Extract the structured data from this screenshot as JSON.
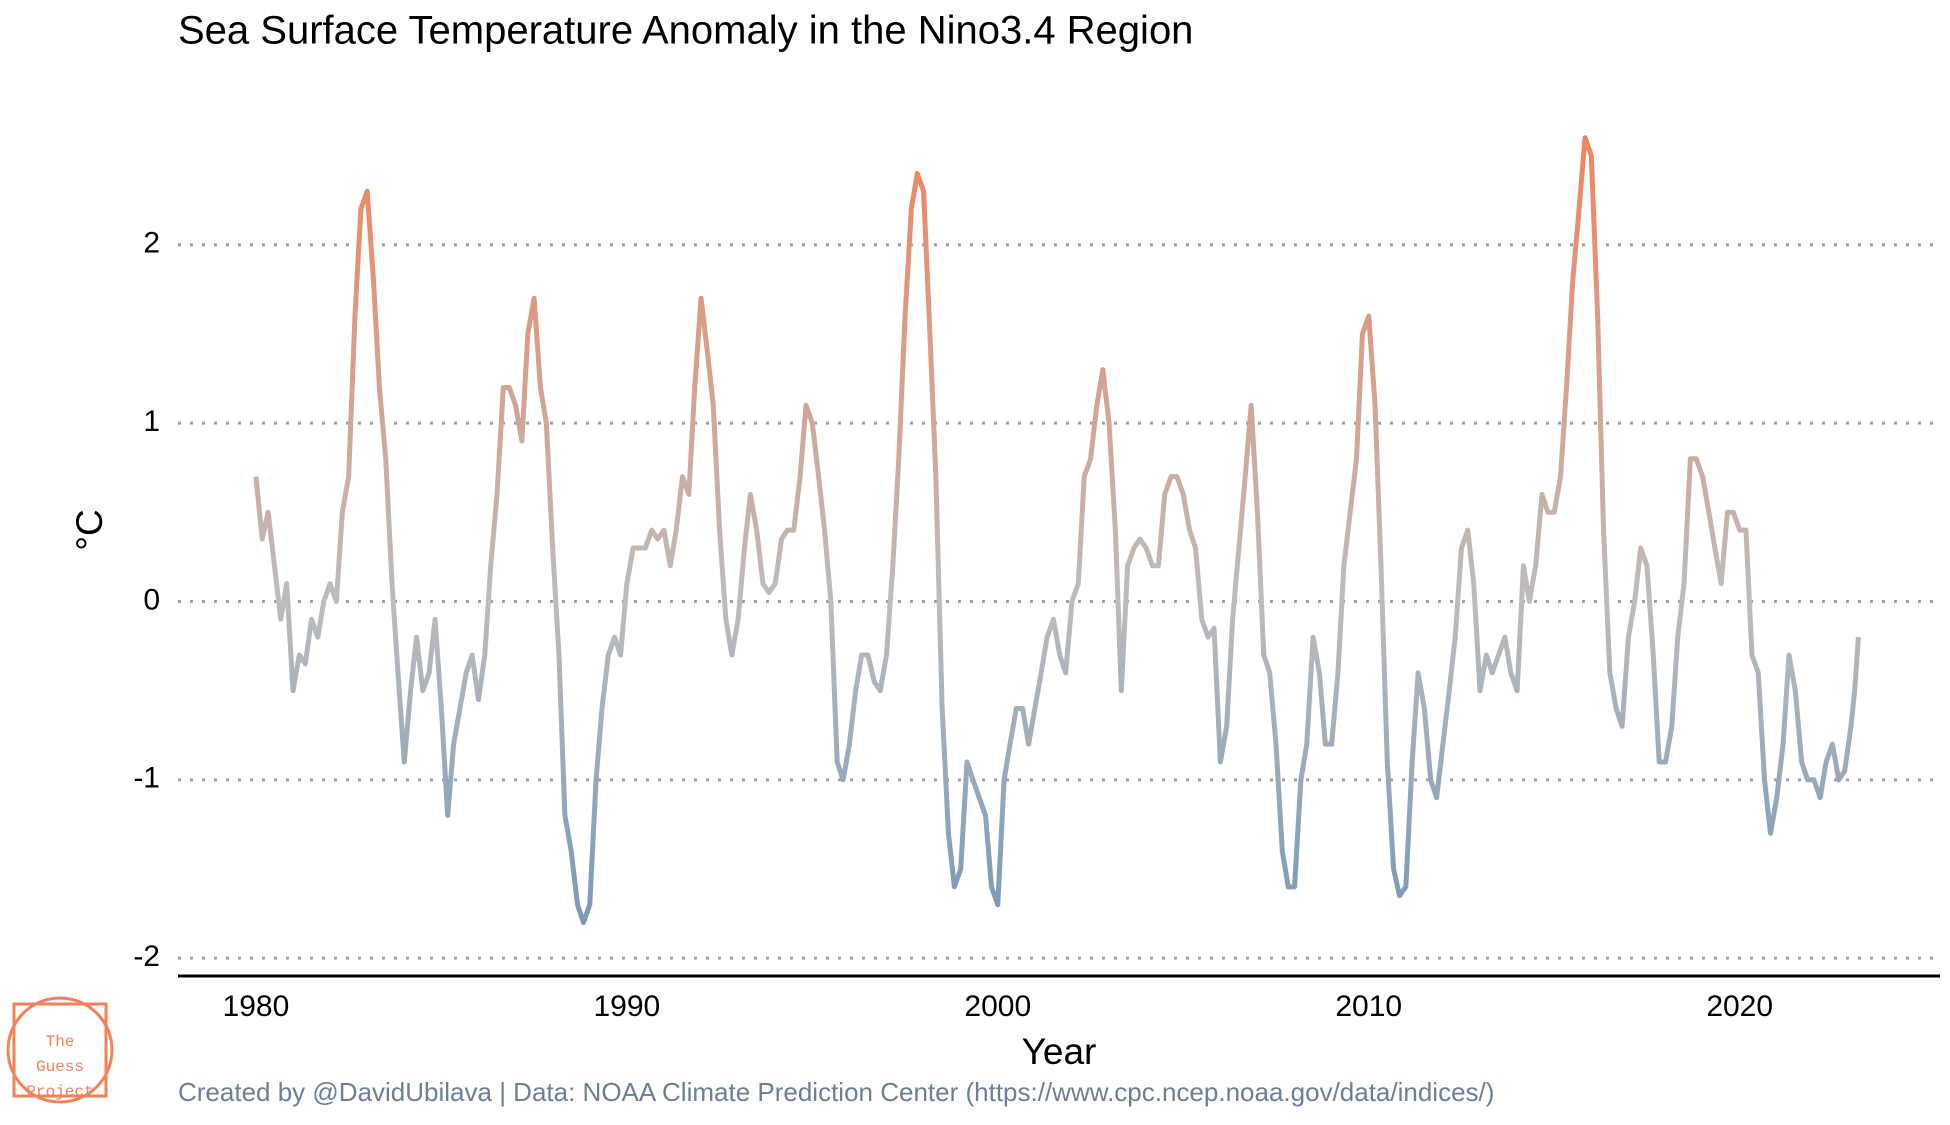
{
  "chart_data": {
    "type": "line",
    "title": "Sea Surface Temperature Anomaly in the Nino3.4 Region",
    "x_label": "Year",
    "y_label": "°C",
    "caption": "Created by @DavidUbilava | Data: NOAA Climate Prediction Center (https://www.cpc.ncep.noaa.gov/data/indices/)",
    "logo": [
      "The",
      "Guess",
      "Project"
    ],
    "grid": true,
    "color_scale": {
      "low": "#6f93b8",
      "mid": "#bcbcbc",
      "high": "#f4815a"
    },
    "xlim": [
      1977.9,
      2025.4
    ],
    "xticks": [
      1980,
      1990,
      2000,
      2010,
      2020
    ],
    "ylim": [
      -2.1,
      2.75
    ],
    "yticks": [
      -2,
      -1,
      0,
      1,
      2
    ],
    "x": [
      1980,
      1980.17,
      1980.33,
      1980.5,
      1980.67,
      1980.83,
      1981,
      1981.17,
      1981.33,
      1981.5,
      1981.67,
      1981.83,
      1982,
      1982.17,
      1982.33,
      1982.5,
      1982.67,
      1982.83,
      1983,
      1983.17,
      1983.33,
      1983.5,
      1983.67,
      1983.83,
      1984,
      1984.17,
      1984.33,
      1984.5,
      1984.67,
      1984.83,
      1985,
      1985.17,
      1985.33,
      1985.5,
      1985.67,
      1985.83,
      1986,
      1986.17,
      1986.33,
      1986.5,
      1986.67,
      1986.83,
      1987,
      1987.17,
      1987.33,
      1987.5,
      1987.67,
      1987.83,
      1988,
      1988.17,
      1988.33,
      1988.5,
      1988.67,
      1988.83,
      1989,
      1989.17,
      1989.33,
      1989.5,
      1989.67,
      1989.83,
      1990,
      1990.17,
      1990.33,
      1990.5,
      1990.67,
      1990.83,
      1991,
      1991.17,
      1991.33,
      1991.5,
      1991.67,
      1991.83,
      1992,
      1992.17,
      1992.33,
      1992.5,
      1992.67,
      1992.83,
      1993,
      1993.17,
      1993.33,
      1993.5,
      1993.67,
      1993.83,
      1994,
      1994.17,
      1994.33,
      1994.5,
      1994.67,
      1994.83,
      1995,
      1995.17,
      1995.33,
      1995.5,
      1995.67,
      1995.83,
      1996,
      1996.17,
      1996.33,
      1996.5,
      1996.67,
      1996.83,
      1997,
      1997.17,
      1997.33,
      1997.5,
      1997.67,
      1997.83,
      1998,
      1998.17,
      1998.33,
      1998.5,
      1998.67,
      1998.83,
      1999,
      1999.17,
      1999.33,
      1999.5,
      1999.67,
      1999.83,
      2000,
      2000.17,
      2000.33,
      2000.5,
      2000.67,
      2000.83,
      2001,
      2001.17,
      2001.33,
      2001.5,
      2001.67,
      2001.83,
      2002,
      2002.17,
      2002.33,
      2002.5,
      2002.67,
      2002.83,
      2003,
      2003.17,
      2003.33,
      2003.5,
      2003.67,
      2003.83,
      2004,
      2004.17,
      2004.33,
      2004.5,
      2004.67,
      2004.83,
      2005,
      2005.17,
      2005.33,
      2005.5,
      2005.67,
      2005.83,
      2006,
      2006.17,
      2006.33,
      2006.5,
      2006.67,
      2006.83,
      2007,
      2007.17,
      2007.33,
      2007.5,
      2007.67,
      2007.83,
      2008,
      2008.17,
      2008.33,
      2008.5,
      2008.67,
      2008.83,
      2009,
      2009.17,
      2009.33,
      2009.5,
      2009.67,
      2009.83,
      2010,
      2010.17,
      2010.33,
      2010.5,
      2010.67,
      2010.83,
      2011,
      2011.17,
      2011.33,
      2011.5,
      2011.67,
      2011.83,
      2012,
      2012.17,
      2012.33,
      2012.5,
      2012.67,
      2012.83,
      2013,
      2013.17,
      2013.33,
      2013.5,
      2013.67,
      2013.83,
      2014,
      2014.17,
      2014.33,
      2014.5,
      2014.67,
      2014.83,
      2015,
      2015.17,
      2015.33,
      2015.5,
      2015.67,
      2015.83,
      2016,
      2016.17,
      2016.33,
      2016.5,
      2016.67,
      2016.83,
      2017,
      2017.17,
      2017.33,
      2017.5,
      2017.67,
      2017.83,
      2018,
      2018.17,
      2018.33,
      2018.5,
      2018.67,
      2018.83,
      2019,
      2019.17,
      2019.33,
      2019.5,
      2019.67,
      2019.83,
      2020,
      2020.17,
      2020.33,
      2020.5,
      2020.67,
      2020.83,
      2021,
      2021.17,
      2021.33,
      2021.5,
      2021.67,
      2021.83,
      2022,
      2022.17,
      2022.33,
      2022.5,
      2022.67,
      2022.83,
      2023,
      2023.1,
      2023.2
    ],
    "values": [
      0.7,
      0.35,
      0.5,
      0.2,
      -0.1,
      0.1,
      -0.5,
      -0.3,
      -0.35,
      -0.1,
      -0.2,
      0.0,
      0.1,
      0.0,
      0.5,
      0.7,
      1.6,
      2.2,
      2.3,
      1.8,
      1.2,
      0.8,
      0.1,
      -0.4,
      -0.9,
      -0.5,
      -0.2,
      -0.5,
      -0.4,
      -0.1,
      -0.6,
      -1.2,
      -0.8,
      -0.6,
      -0.4,
      -0.3,
      -0.55,
      -0.3,
      0.2,
      0.6,
      1.2,
      1.2,
      1.1,
      0.9,
      1.5,
      1.7,
      1.2,
      1.0,
      0.3,
      -0.3,
      -1.2,
      -1.4,
      -1.7,
      -1.8,
      -1.7,
      -1.0,
      -0.6,
      -0.3,
      -0.2,
      -0.3,
      0.1,
      0.3,
      0.3,
      0.3,
      0.4,
      0.35,
      0.4,
      0.2,
      0.4,
      0.7,
      0.6,
      1.2,
      1.7,
      1.4,
      1.1,
      0.4,
      -0.1,
      -0.3,
      -0.1,
      0.3,
      0.6,
      0.4,
      0.1,
      0.05,
      0.1,
      0.35,
      0.4,
      0.4,
      0.7,
      1.1,
      1.0,
      0.7,
      0.4,
      0.0,
      -0.9,
      -1.0,
      -0.8,
      -0.5,
      -0.3,
      -0.3,
      -0.45,
      -0.5,
      -0.3,
      0.2,
      0.8,
      1.6,
      2.2,
      2.4,
      2.3,
      1.5,
      0.7,
      -0.6,
      -1.3,
      -1.6,
      -1.5,
      -0.9,
      -1.0,
      -1.1,
      -1.2,
      -1.6,
      -1.7,
      -1.0,
      -0.8,
      -0.6,
      -0.6,
      -0.8,
      -0.6,
      -0.4,
      -0.2,
      -0.1,
      -0.3,
      -0.4,
      0.0,
      0.1,
      0.7,
      0.8,
      1.1,
      1.3,
      1.0,
      0.4,
      -0.5,
      0.2,
      0.3,
      0.35,
      0.3,
      0.2,
      0.2,
      0.6,
      0.7,
      0.7,
      0.6,
      0.4,
      0.3,
      -0.1,
      -0.2,
      -0.15,
      -0.9,
      -0.7,
      -0.1,
      0.3,
      0.7,
      1.1,
      0.5,
      -0.3,
      -0.4,
      -0.8,
      -1.4,
      -1.6,
      -1.6,
      -1.0,
      -0.8,
      -0.2,
      -0.4,
      -0.8,
      -0.8,
      -0.4,
      0.2,
      0.5,
      0.8,
      1.5,
      1.6,
      1.1,
      0.2,
      -0.9,
      -1.5,
      -1.65,
      -1.6,
      -0.9,
      -0.4,
      -0.6,
      -1.0,
      -1.1,
      -0.8,
      -0.5,
      -0.2,
      0.3,
      0.4,
      0.1,
      -0.5,
      -0.3,
      -0.4,
      -0.3,
      -0.2,
      -0.4,
      -0.5,
      0.2,
      0.0,
      0.2,
      0.6,
      0.5,
      0.5,
      0.7,
      1.2,
      1.8,
      2.2,
      2.6,
      2.5,
      1.6,
      0.4,
      -0.4,
      -0.6,
      -0.7,
      -0.2,
      0.0,
      0.3,
      0.2,
      -0.3,
      -0.9,
      -0.9,
      -0.7,
      -0.2,
      0.1,
      0.8,
      0.8,
      0.7,
      0.5,
      0.3,
      0.1,
      0.5,
      0.5,
      0.4,
      0.4,
      -0.3,
      -0.4,
      -1.0,
      -1.3,
      -1.1,
      -0.8,
      -0.3,
      -0.5,
      -0.9,
      -1.0,
      -1.0,
      -1.1,
      -0.9,
      -0.8,
      -1.0,
      -0.95,
      -0.7,
      -0.5,
      -0.2
    ]
  }
}
